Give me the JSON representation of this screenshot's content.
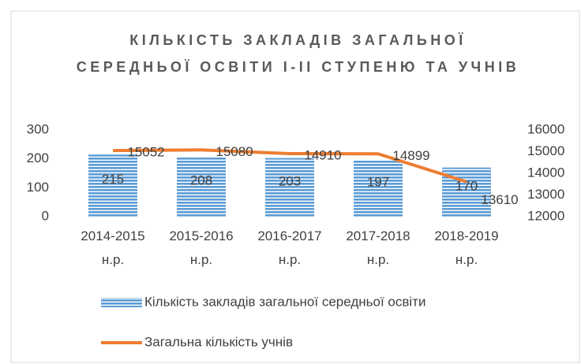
{
  "chart_data": {
    "type": "bar",
    "title": "КІЛЬКІСТЬ ЗАКЛАДІВ ЗАГАЛЬНОЇ СЕРЕДНЬОЇ ОСВІТИ І-ІІ СТУПЕНЮ ТА УЧНІВ",
    "categories": [
      "2014-2015 н.р.",
      "2015-2016 н.р.",
      "2016-2017 н.р.",
      "2017-2018 н.р.",
      "2018-2019 н.р."
    ],
    "series": [
      {
        "name": "Кількість закладів загальної середньої освіти",
        "type": "bar",
        "color": "#5b9bd5",
        "values": [
          215,
          208,
          203,
          197,
          170
        ]
      },
      {
        "name": "Загальна кількість учнів",
        "type": "line",
        "color": "#ed7d31",
        "axis": "y2",
        "values": [
          15052,
          15080,
          14910,
          14899,
          13610
        ]
      }
    ],
    "ylim": [
      0,
      300
    ],
    "yticks": [
      0,
      100,
      200,
      300
    ],
    "y2lim": [
      12000,
      16000
    ],
    "y2ticks": [
      12000,
      13000,
      14000,
      15000,
      16000
    ],
    "grid": false,
    "legend": "bottom"
  }
}
